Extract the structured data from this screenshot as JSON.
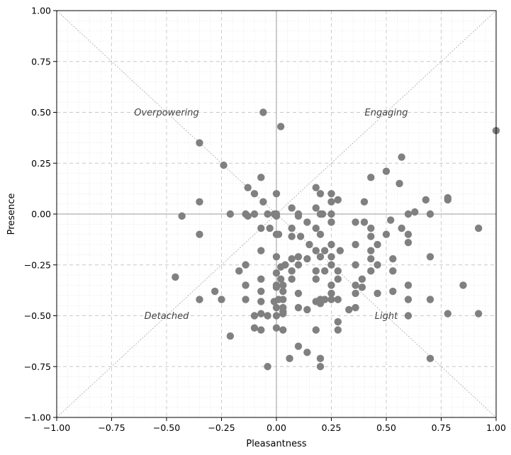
{
  "chart_data": {
    "type": "scatter",
    "title": "",
    "xlabel": "Pleasantness",
    "ylabel": "Presence",
    "xlim": [
      -1.0,
      1.0
    ],
    "ylim": [
      -1.0,
      1.0
    ],
    "grid": true,
    "minor_grid": true,
    "point_color": "#808080",
    "xticks": [
      "−1.00",
      "−0.75",
      "−0.50",
      "−0.25",
      "0.00",
      "0.25",
      "0.50",
      "0.75",
      "1.00"
    ],
    "yticks": [
      "−1.00",
      "−0.75",
      "−0.50",
      "−0.25",
      "0.00",
      "0.25",
      "0.50",
      "0.75",
      "1.00"
    ],
    "tick_values": [
      -1.0,
      -0.75,
      -0.5,
      -0.25,
      0.0,
      0.25,
      0.5,
      0.75,
      1.0
    ],
    "annotations": [
      {
        "text": "Overpowering",
        "x": -0.5,
        "y": 0.5
      },
      {
        "text": "Engaging",
        "x": 0.5,
        "y": 0.5
      },
      {
        "text": "Detached",
        "x": -0.5,
        "y": -0.5
      },
      {
        "text": "Light",
        "x": 0.5,
        "y": -0.5
      }
    ],
    "points": [
      [
        -0.06,
        0.5
      ],
      [
        0.02,
        0.43
      ],
      [
        1.0,
        0.41
      ],
      [
        -0.35,
        0.35
      ],
      [
        -0.24,
        0.24
      ],
      [
        0.57,
        0.28
      ],
      [
        0.5,
        0.21
      ],
      [
        0.43,
        0.18
      ],
      [
        0.56,
        0.15
      ],
      [
        -0.07,
        0.18
      ],
      [
        -0.13,
        0.13
      ],
      [
        0.18,
        0.13
      ],
      [
        -0.1,
        0.1
      ],
      [
        0.0,
        0.1
      ],
      [
        0.2,
        0.1
      ],
      [
        0.25,
        0.1
      ],
      [
        -0.06,
        0.06
      ],
      [
        0.25,
        0.06
      ],
      [
        0.28,
        0.07
      ],
      [
        0.4,
        0.06
      ],
      [
        0.68,
        0.07
      ],
      [
        0.78,
        0.07
      ],
      [
        0.78,
        0.08
      ],
      [
        -0.35,
        0.06
      ],
      [
        0.07,
        0.03
      ],
      [
        0.18,
        0.03
      ],
      [
        -0.43,
        -0.01
      ],
      [
        -0.21,
        0.0
      ],
      [
        -0.14,
        0.0
      ],
      [
        -0.13,
        -0.01
      ],
      [
        -0.1,
        0.0
      ],
      [
        -0.04,
        0.0
      ],
      [
        -0.01,
        0.0
      ],
      [
        0.0,
        0.0
      ],
      [
        0.0,
        -0.01
      ],
      [
        0.1,
        0.0
      ],
      [
        0.1,
        -0.01
      ],
      [
        0.2,
        0.0
      ],
      [
        0.21,
        0.0
      ],
      [
        0.25,
        0.0
      ],
      [
        0.6,
        0.0
      ],
      [
        0.63,
        0.01
      ],
      [
        0.7,
        0.0
      ],
      [
        -0.35,
        -0.1
      ],
      [
        -0.07,
        -0.07
      ],
      [
        -0.03,
        -0.07
      ],
      [
        0.07,
        -0.07
      ],
      [
        0.14,
        -0.04
      ],
      [
        0.18,
        -0.07
      ],
      [
        0.25,
        -0.04
      ],
      [
        0.36,
        -0.04
      ],
      [
        0.4,
        -0.04
      ],
      [
        0.43,
        -0.07
      ],
      [
        0.52,
        -0.03
      ],
      [
        0.57,
        -0.07
      ],
      [
        0.92,
        -0.07
      ],
      [
        0.0,
        -0.1
      ],
      [
        0.01,
        -0.1
      ],
      [
        0.07,
        -0.11
      ],
      [
        0.11,
        -0.11
      ],
      [
        0.2,
        -0.1
      ],
      [
        0.43,
        -0.11
      ],
      [
        0.5,
        -0.1
      ],
      [
        0.6,
        -0.1
      ],
      [
        0.15,
        -0.15
      ],
      [
        0.25,
        -0.15
      ],
      [
        0.36,
        -0.15
      ],
      [
        0.46,
        -0.15
      ],
      [
        0.6,
        -0.14
      ],
      [
        -0.07,
        -0.18
      ],
      [
        0.18,
        -0.18
      ],
      [
        0.22,
        -0.18
      ],
      [
        0.29,
        -0.18
      ],
      [
        0.43,
        -0.18
      ],
      [
        0.0,
        -0.21
      ],
      [
        0.07,
        -0.22
      ],
      [
        0.1,
        -0.21
      ],
      [
        0.14,
        -0.22
      ],
      [
        0.2,
        -0.21
      ],
      [
        0.25,
        -0.21
      ],
      [
        0.43,
        -0.22
      ],
      [
        0.53,
        -0.22
      ],
      [
        0.7,
        -0.21
      ],
      [
        -0.14,
        -0.25
      ],
      [
        0.04,
        -0.25
      ],
      [
        0.02,
        -0.26
      ],
      [
        0.1,
        -0.25
      ],
      [
        0.25,
        -0.25
      ],
      [
        0.36,
        -0.25
      ],
      [
        0.46,
        -0.25
      ],
      [
        -0.17,
        -0.28
      ],
      [
        0.07,
        -0.28
      ],
      [
        0.18,
        -0.28
      ],
      [
        0.22,
        -0.28
      ],
      [
        0.28,
        -0.28
      ],
      [
        0.43,
        -0.28
      ],
      [
        0.53,
        -0.28
      ],
      [
        -0.46,
        -0.31
      ],
      [
        0.0,
        -0.29
      ],
      [
        0.02,
        -0.32
      ],
      [
        0.07,
        -0.32
      ],
      [
        0.18,
        -0.32
      ],
      [
        0.28,
        -0.32
      ],
      [
        0.39,
        -0.32
      ],
      [
        -0.07,
        -0.32
      ],
      [
        0.0,
        -0.35
      ],
      [
        0.0,
        -0.36
      ],
      [
        0.03,
        -0.35
      ],
      [
        0.25,
        -0.35
      ],
      [
        0.36,
        -0.35
      ],
      [
        0.39,
        -0.36
      ],
      [
        0.6,
        -0.35
      ],
      [
        0.85,
        -0.35
      ],
      [
        -0.14,
        -0.35
      ],
      [
        -0.28,
        -0.38
      ],
      [
        -0.07,
        -0.38
      ],
      [
        0.03,
        -0.38
      ],
      [
        0.1,
        -0.39
      ],
      [
        0.25,
        -0.39
      ],
      [
        0.36,
        -0.39
      ],
      [
        0.46,
        -0.39
      ],
      [
        0.53,
        -0.38
      ],
      [
        -0.35,
        -0.42
      ],
      [
        -0.25,
        -0.42
      ],
      [
        -0.14,
        -0.42
      ],
      [
        -0.07,
        -0.43
      ],
      [
        -0.01,
        -0.43
      ],
      [
        0.01,
        -0.42
      ],
      [
        0.03,
        -0.42
      ],
      [
        0.18,
        -0.43
      ],
      [
        0.2,
        -0.42
      ],
      [
        0.2,
        -0.44
      ],
      [
        0.22,
        -0.42
      ],
      [
        0.25,
        -0.42
      ],
      [
        0.28,
        -0.42
      ],
      [
        0.6,
        -0.42
      ],
      [
        0.7,
        -0.42
      ],
      [
        0.0,
        -0.46
      ],
      [
        0.03,
        -0.46
      ],
      [
        0.1,
        -0.46
      ],
      [
        0.14,
        -0.47
      ],
      [
        0.33,
        -0.47
      ],
      [
        0.36,
        -0.46
      ],
      [
        -0.1,
        -0.5
      ],
      [
        -0.07,
        -0.49
      ],
      [
        -0.04,
        -0.5
      ],
      [
        0.0,
        -0.5
      ],
      [
        0.03,
        -0.49
      ],
      [
        0.03,
        -0.48
      ],
      [
        0.28,
        -0.53
      ],
      [
        0.6,
        -0.5
      ],
      [
        0.78,
        -0.49
      ],
      [
        0.92,
        -0.49
      ],
      [
        -0.21,
        -0.6
      ],
      [
        -0.1,
        -0.56
      ],
      [
        -0.07,
        -0.57
      ],
      [
        0.0,
        -0.56
      ],
      [
        0.03,
        -0.57
      ],
      [
        0.18,
        -0.57
      ],
      [
        0.28,
        -0.57
      ],
      [
        0.1,
        -0.65
      ],
      [
        0.14,
        -0.68
      ],
      [
        0.06,
        -0.71
      ],
      [
        0.2,
        -0.71
      ],
      [
        0.7,
        -0.71
      ],
      [
        -0.04,
        -0.75
      ],
      [
        0.2,
        -0.75
      ]
    ]
  }
}
